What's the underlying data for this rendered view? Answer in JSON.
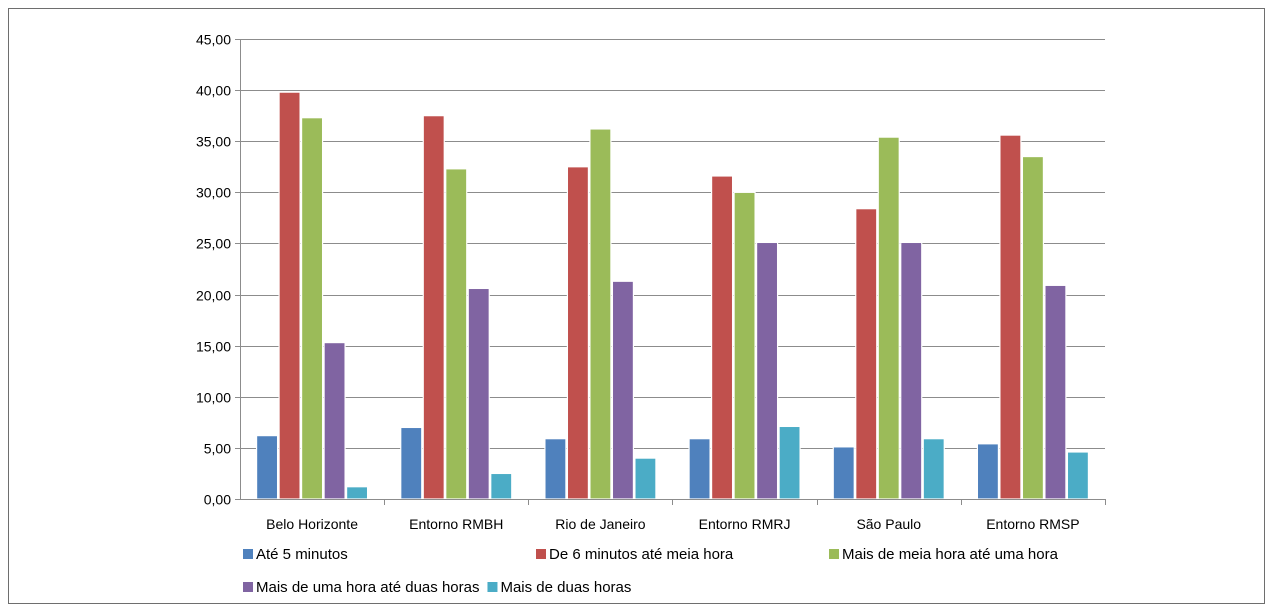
{
  "chart_data": {
    "type": "bar",
    "categories": [
      "Belo Horizonte",
      "Entorno RMBH",
      "Rio de Janeiro",
      "Entorno RMRJ",
      "São Paulo",
      "Entorno RMSP"
    ],
    "series": [
      {
        "name": "Até 5 minutos",
        "color": "#4F81BD",
        "values": [
          6.2,
          7.0,
          5.9,
          5.9,
          5.1,
          5.4
        ]
      },
      {
        "name": "De 6 minutos até meia hora",
        "color": "#C0504D",
        "values": [
          39.8,
          37.5,
          32.5,
          31.6,
          28.4,
          35.6
        ]
      },
      {
        "name": "Mais de meia hora até uma hora",
        "color": "#9BBB59",
        "values": [
          37.3,
          32.3,
          36.2,
          30.0,
          35.4,
          33.5
        ]
      },
      {
        "name": "Mais de uma hora até duas horas",
        "color": "#8064A2",
        "values": [
          15.3,
          20.6,
          21.3,
          25.1,
          25.1,
          20.9
        ]
      },
      {
        "name": "Mais de duas horas",
        "color": "#4BACC6",
        "values": [
          1.2,
          2.5,
          4.0,
          7.1,
          5.9,
          4.6
        ]
      }
    ],
    "ylim": [
      0,
      45
    ],
    "yticks": [
      "0,00",
      "5,00",
      "10,00",
      "15,00",
      "20,00",
      "25,00",
      "30,00",
      "35,00",
      "40,00",
      "45,00"
    ],
    "ytick_values": [
      0,
      5,
      10,
      15,
      20,
      25,
      30,
      35,
      40,
      45
    ],
    "grid": true,
    "legend_position": "bottom",
    "title": "",
    "xlabel": "",
    "ylabel": ""
  }
}
